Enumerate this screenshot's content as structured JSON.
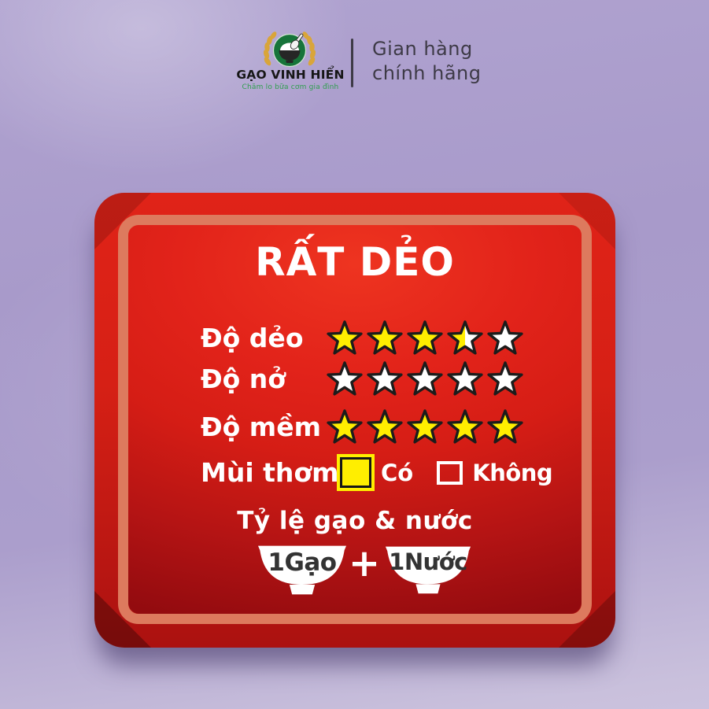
{
  "header": {
    "logo_icon": "rice-bowl-wheat-emblem",
    "brand_name": "GẠO VINH HIỂN",
    "brand_tagline": "Chăm lo bữa cơm gia đình",
    "store_badge_line1": "Gian hàng",
    "store_badge_line2": "chính hãng"
  },
  "card": {
    "title": "RẤT DẺO",
    "ratings": [
      {
        "label": "Độ dẻo",
        "value": 3.5,
        "max": 5
      },
      {
        "label": "Độ nở",
        "value": 0,
        "max": 5
      },
      {
        "label": "Độ mềm",
        "value": 5,
        "max": 5
      }
    ],
    "aroma": {
      "label": "Mùi thơm",
      "options": [
        {
          "label": "Có",
          "checked": true
        },
        {
          "label": "Không",
          "checked": false
        }
      ]
    },
    "ratio": {
      "title": "Tỷ lệ gạo & nước",
      "left_bowl_label": "1Gạo",
      "plus": "+",
      "right_bowl_label": "1Nước"
    }
  },
  "colors": {
    "background_lavender": "#ab9ecb",
    "card_red": "#e2231a",
    "card_dark_red": "#930b0f",
    "inner_border_salmon": "#dd7a5e",
    "star_yellow": "#ffee00",
    "star_outline": "#1c1c1c",
    "logo_green": "#17743a",
    "wheat_gold": "#d9a53a",
    "tagline_green": "#2f9e4e",
    "badge_text_gray": "#3d3a46"
  }
}
